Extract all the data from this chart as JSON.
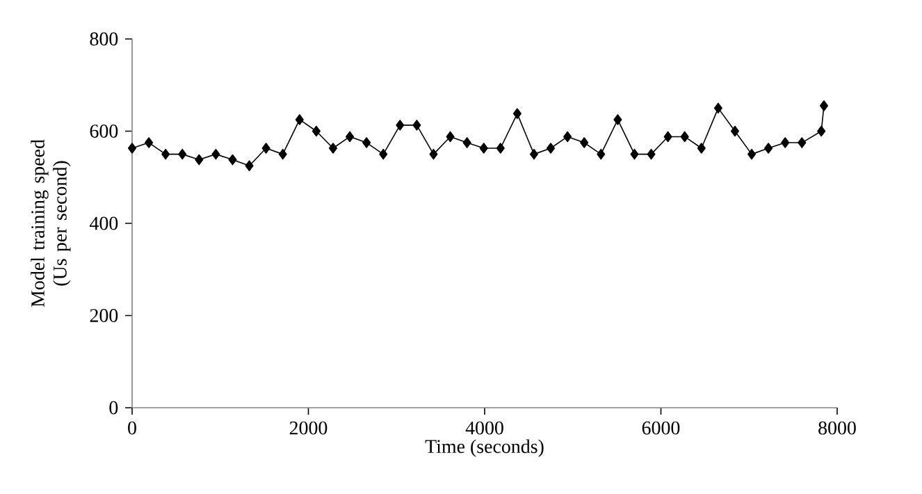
{
  "chart_data": {
    "type": "line",
    "xlabel": "Time (seconds)",
    "ylabel": "Model training speed (Us per second)",
    "x": [
      0,
      190,
      380,
      570,
      760,
      950,
      1140,
      1330,
      1520,
      1710,
      1900,
      2090,
      2280,
      2470,
      2660,
      2850,
      3040,
      3230,
      3420,
      3610,
      3800,
      3990,
      4180,
      4370,
      4560,
      4750,
      4940,
      5130,
      5320,
      5510,
      5700,
      5890,
      6080,
      6270,
      6460,
      6650,
      6840,
      7030,
      7220,
      7410,
      7600,
      7820,
      7850
    ],
    "values": [
      563,
      575,
      550,
      550,
      538,
      550,
      538,
      525,
      563,
      550,
      625,
      600,
      563,
      588,
      575,
      550,
      613,
      613,
      550,
      588,
      575,
      563,
      563,
      638,
      550,
      563,
      588,
      575,
      550,
      625,
      550,
      550,
      588,
      588,
      563,
      650,
      600,
      550,
      563,
      575,
      575,
      600,
      655
    ],
    "color": "#000000",
    "marker": "diamond",
    "line_style": "solid",
    "grid": false,
    "xlim": [
      0,
      8000
    ],
    "xticks": [
      0,
      2000,
      4000,
      6000,
      8000
    ],
    "ylim": [
      0,
      800
    ],
    "yticks": [
      0,
      200,
      400,
      600,
      800
    ]
  }
}
